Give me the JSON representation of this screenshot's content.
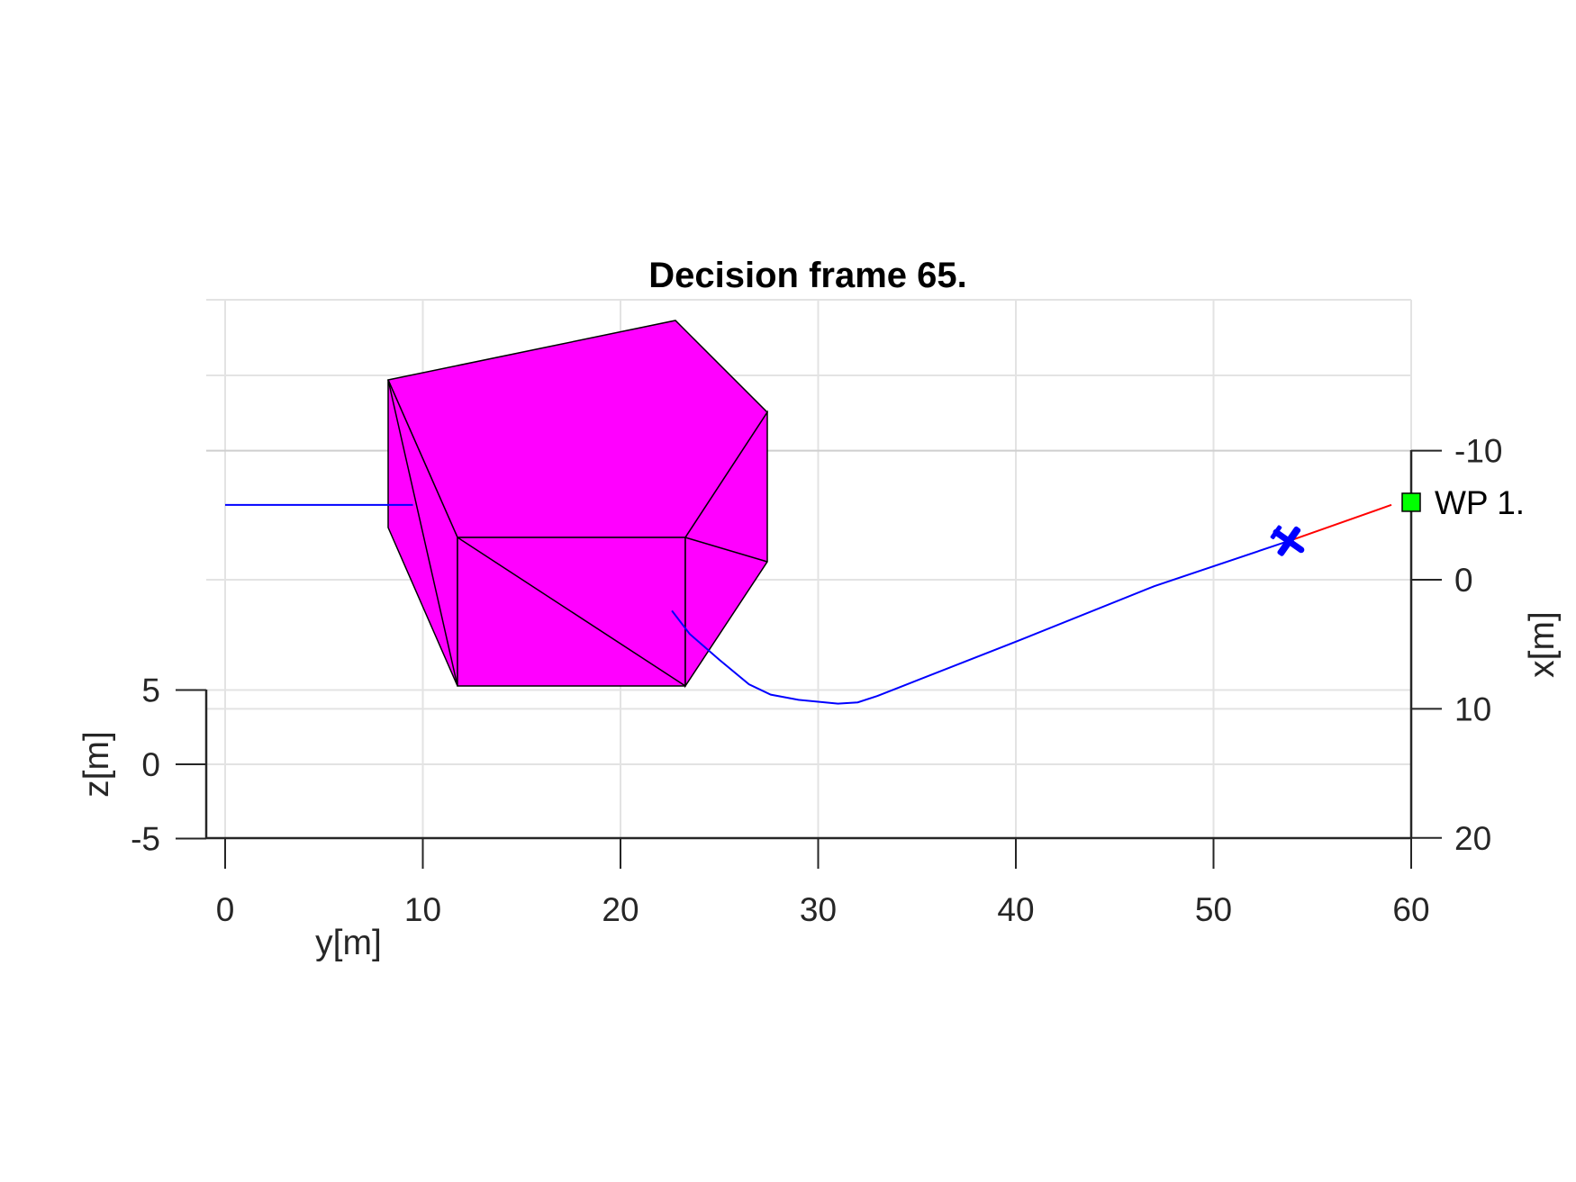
{
  "chart_data": {
    "type": "scatter",
    "title": "Decision frame 65.",
    "xlabel": "y[m]",
    "ylabel": "x[m]",
    "zlabel": "z[m]",
    "y_axis": {
      "ticks": [
        0,
        10,
        20,
        30,
        40,
        50,
        60
      ],
      "range": [
        -1,
        60
      ]
    },
    "x_axis": {
      "ticks": [
        -10,
        0,
        10,
        20
      ],
      "range": [
        -10,
        20
      ]
    },
    "z_axis": {
      "ticks": [
        5,
        0,
        -5
      ],
      "range": [
        -5,
        5
      ]
    },
    "grid": true,
    "obstacle": {
      "color": "#ff00ff",
      "edge_color": "#000000"
    },
    "waypoint": {
      "label": "WP 1.",
      "color": "#00ff00",
      "y": 60,
      "x": -6
    },
    "flown_path": {
      "color": "#0000ff",
      "points_yx": [
        [
          22.6,
          2.4
        ],
        [
          23.5,
          4.2
        ],
        [
          25.0,
          6.2
        ],
        [
          26.5,
          8.1
        ],
        [
          27.6,
          8.9
        ],
        [
          29.0,
          9.3
        ],
        [
          31.0,
          9.6
        ],
        [
          32.0,
          9.5
        ],
        [
          33.0,
          9.0
        ],
        [
          40.0,
          4.8
        ],
        [
          47.0,
          0.5
        ],
        [
          53.6,
          -2.9
        ]
      ]
    },
    "projected_path": {
      "color": "#0000ff",
      "y_range": [
        0,
        9.5
      ],
      "x": -5.8
    },
    "planned_segment": {
      "color": "#ff0000",
      "from_yx": [
        54.0,
        -3.1
      ],
      "to_yx": [
        59.0,
        -5.8
      ]
    },
    "aircraft": {
      "icon": "airplane-icon",
      "color": "#0000ff",
      "y": 53.8,
      "x": -3.0
    }
  }
}
